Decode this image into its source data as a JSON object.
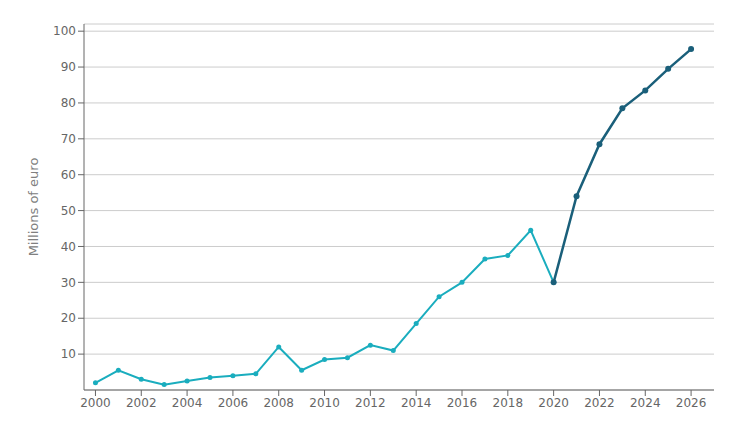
{
  "chart_data": {
    "type": "line",
    "ylabel": "Millions of euro",
    "x": [
      2000,
      2001,
      2002,
      2003,
      2004,
      2005,
      2006,
      2007,
      2008,
      2009,
      2010,
      2011,
      2012,
      2013,
      2014,
      2015,
      2016,
      2017,
      2018,
      2019,
      2020,
      2021,
      2022,
      2023,
      2024,
      2025,
      2026
    ],
    "series": [
      {
        "color": "#1aadbe",
        "values": [
          2.0,
          5.5,
          3.0,
          1.5,
          2.5,
          3.5,
          4.0,
          4.5,
          12.0,
          5.5,
          8.5,
          9.0,
          12.5,
          11.0,
          18.5,
          26.0,
          30.0,
          36.5,
          37.5,
          44.5,
          30.0,
          null,
          null,
          null,
          null,
          null,
          null
        ]
      },
      {
        "color": "#1a5f7a",
        "values": [
          null,
          null,
          null,
          null,
          null,
          null,
          null,
          null,
          null,
          null,
          null,
          null,
          null,
          null,
          null,
          null,
          null,
          null,
          null,
          null,
          30.0,
          54.0,
          68.5,
          78.5,
          83.5,
          89.5,
          95.0
        ]
      }
    ],
    "xlim": [
      1999.5,
      2027.0
    ],
    "xticks": [
      2000,
      2002,
      2004,
      2006,
      2008,
      2010,
      2012,
      2014,
      2016,
      2018,
      2020,
      2022,
      2024,
      2026
    ],
    "ylim": [
      0,
      102
    ],
    "yticks": [
      10,
      20,
      30,
      40,
      50,
      60,
      70,
      80,
      90,
      100
    ],
    "grid": true,
    "marker": "circle"
  }
}
